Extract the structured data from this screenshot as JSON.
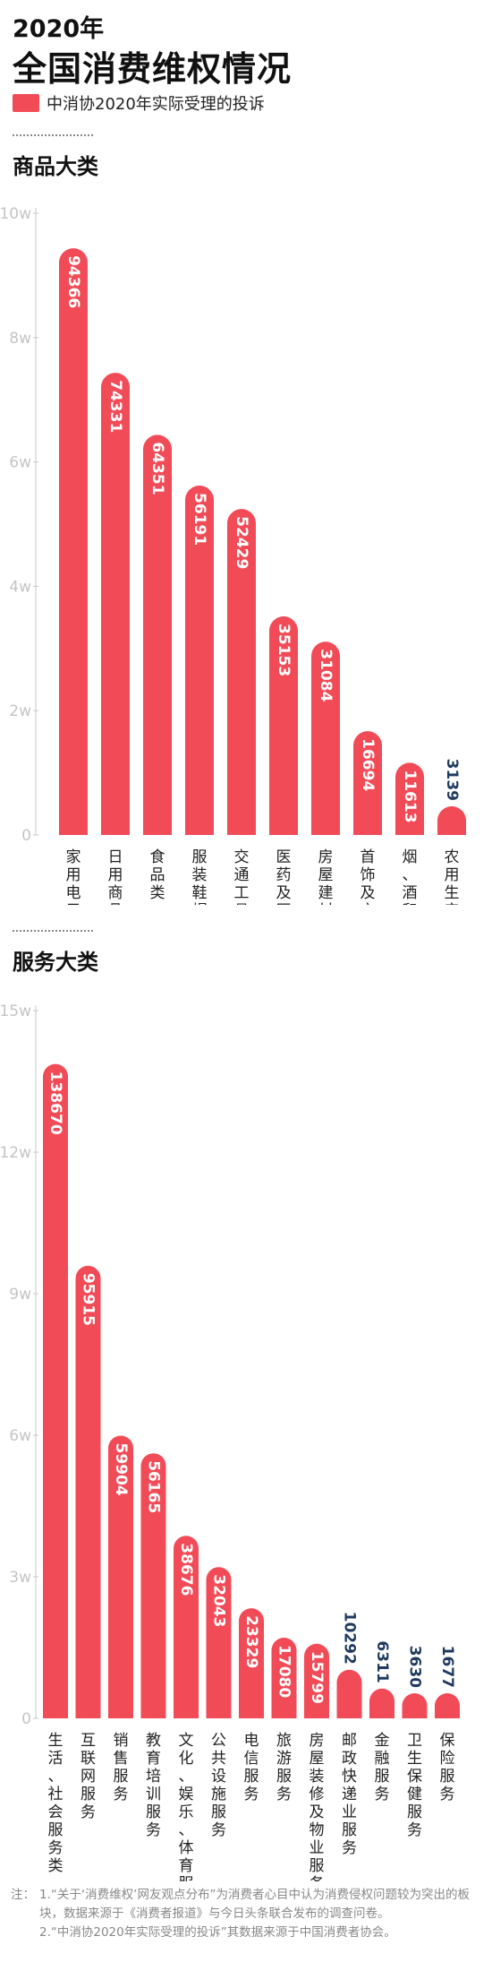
{
  "header": {
    "year": "2020年",
    "title": "全国消费维权情况",
    "legend_label": "中消协2020年实际受理的投诉",
    "bar_color": "#f14b57"
  },
  "sections": {
    "goods_title": "商品大类",
    "services_title": "服务大类"
  },
  "chart_data": [
    {
      "type": "bar",
      "title": "商品大类",
      "yticks": [
        "0",
        "2w",
        "4w",
        "6w",
        "8w",
        "10w"
      ],
      "ylim": [
        0,
        100000
      ],
      "grid": false,
      "categories": [
        "家用电子电器类",
        "日用商品类",
        "食品类",
        "服装鞋帽类",
        "交通工具类",
        "医药及医疗用品类",
        "房屋建材类",
        "首饰及文体用品类",
        "烟、酒和饮料类",
        "农用生产资料类"
      ],
      "values": [
        94366,
        74331,
        64351,
        56191,
        52429,
        35153,
        31084,
        16694,
        11613,
        3139
      ],
      "value_labels": [
        "94366",
        "74331",
        "64351",
        "56191",
        "52429",
        "35153",
        "31084",
        "16694",
        "11613",
        "3139"
      ],
      "colors": {
        "bar": "#f14b57",
        "label_inside": "#ffffff",
        "label_outside": "#1f3a5f"
      }
    },
    {
      "type": "bar",
      "title": "服务大类",
      "yticks": [
        "0",
        "3w",
        "6w",
        "9w",
        "12w",
        "15w"
      ],
      "ylim": [
        0,
        150000
      ],
      "grid": false,
      "categories": [
        "生活、社会服务类",
        "互联网服务",
        "销售服务",
        "教育培训服务",
        "文化、娱乐、体育服务",
        "公共设施服务",
        "电信服务",
        "旅游服务",
        "房屋装修及物业服务",
        "邮政快递业服务",
        "金融服务",
        "卫生保健服务",
        "保险服务"
      ],
      "values": [
        138670,
        95915,
        59904,
        56165,
        38676,
        32043,
        23329,
        17080,
        15799,
        10292,
        6311,
        3630,
        1677
      ],
      "value_labels": [
        "138670",
        "95915",
        "59904",
        "56165",
        "38676",
        "32043",
        "23329",
        "17080",
        "15799",
        "10292",
        "6311",
        "3630",
        "1677"
      ],
      "colors": {
        "bar": "#f14b57",
        "label_inside": "#ffffff",
        "label_outside": "#1f3a5f"
      }
    }
  ],
  "notes": [
    {
      "prefix": "注：",
      "text": "1.“关于‘消费维权’网友观点分布”为消费者心目中认为消费侵权问题较为突出的板块，数据来源于《消费者报道》与今日头条联合发布的调查问卷。"
    },
    {
      "prefix": "",
      "text": "2.“中消协2020年实际受理的投诉”其数据来源于中国消费者协会。"
    }
  ]
}
